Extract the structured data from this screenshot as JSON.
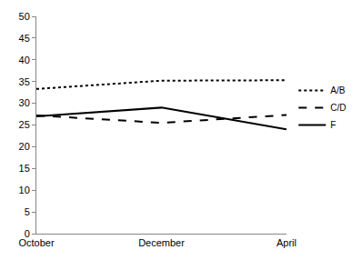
{
  "chart_data": {
    "type": "line",
    "categories": [
      "October",
      "December",
      "April"
    ],
    "series": [
      {
        "name": "A/B",
        "color": "#000000",
        "line_style": "dotted",
        "values": [
          33.3,
          35.2,
          35.3
        ]
      },
      {
        "name": "C/D",
        "color": "#000000",
        "line_style": "dashed",
        "values": [
          27.2,
          25.5,
          27.3
        ]
      },
      {
        "name": "F",
        "color": "#000000",
        "line_style": "solid",
        "values": [
          27.0,
          29.0,
          24.0
        ]
      }
    ],
    "ylim": [
      0,
      50
    ],
    "yticks": [
      0,
      5,
      10,
      15,
      20,
      25,
      30,
      35,
      40,
      45,
      50
    ],
    "grid": false,
    "legend": "right"
  }
}
